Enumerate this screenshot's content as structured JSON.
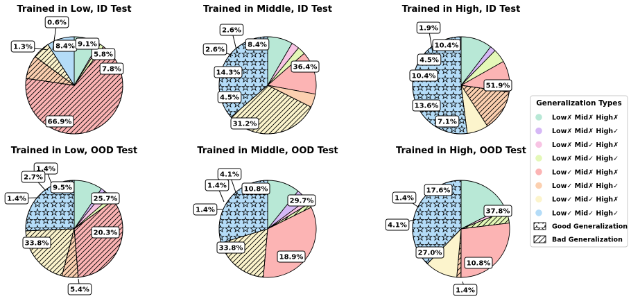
{
  "legend": {
    "title": "Generalization Types",
    "items": [
      {
        "label": "Low✗ Mid✗ High✗",
        "color": "#b8e8d6"
      },
      {
        "label": "Low✗ Mid✗ High✓",
        "color": "#d6b8f6"
      },
      {
        "label": "Low✗ Mid✓ High✗",
        "color": "#f8c4e4"
      },
      {
        "label": "Low✗ Mid✓ High✓",
        "color": "#e4f8b8"
      },
      {
        "label": "Low✓ Mid✗ High✗",
        "color": "#fcb4b4"
      },
      {
        "label": "Low✓ Mid✗ High✓",
        "color": "#fcd0b0"
      },
      {
        "label": "Low✓ Mid✓ High✗",
        "color": "#fcf4cc"
      },
      {
        "label": "Low✓ Mid✓ High✓",
        "color": "#b4dcf8"
      }
    ],
    "pattern_items": [
      {
        "label": "Good Generalization",
        "pattern": "stars"
      },
      {
        "label": "Bad Generalization",
        "pattern": "hatch"
      }
    ]
  },
  "chart_data": [
    {
      "type": "pie",
      "title": "Trained in Low, ID Test",
      "values": [
        8.4,
        0,
        0.6,
        1.3,
        66.9,
        7.8,
        5.8,
        9.1
      ],
      "labels": [
        "8.4%",
        "",
        "0.6%",
        "1.3%",
        "66.9%",
        "7.8%",
        "5.8%",
        "9.1%"
      ],
      "patterns": [
        "none",
        "none",
        "none",
        "none",
        "hatch",
        "hatch",
        "hatch",
        "none"
      ]
    },
    {
      "type": "pie",
      "title": "Trained in Middle, ID Test",
      "values": [
        8.4,
        0,
        2.6,
        2.6,
        14.3,
        4.5,
        31.2,
        36.4
      ],
      "labels": [
        "8.4%",
        "",
        "2.6%",
        "2.6%",
        "14.3%",
        "4.5%",
        "31.2%",
        "36.4%"
      ],
      "patterns": [
        "none",
        "none",
        "none",
        "none",
        "none",
        "none",
        "hatch",
        "stars"
      ]
    },
    {
      "type": "pie",
      "title": "Trained in High, ID Test",
      "values": [
        10.4,
        1.9,
        0,
        4.5,
        10.4,
        13.6,
        7.1,
        51.9
      ],
      "labels": [
        "10.4%",
        "1.9%",
        "",
        "4.5%",
        "10.4%",
        "13.6%",
        "7.1%",
        "51.9%"
      ],
      "patterns": [
        "none",
        "none",
        "none",
        "none",
        "none",
        "hatch",
        "none",
        "stars"
      ]
    },
    {
      "type": "pie",
      "title": "Trained in Low, OOD Test",
      "values": [
        9.5,
        1.4,
        2.7,
        1.4,
        33.8,
        5.4,
        20.3,
        25.7
      ],
      "labels": [
        "9.5%",
        "1.4%",
        "2.7%",
        "1.4%",
        "33.8%",
        "5.4%",
        "20.3%",
        "25.7%"
      ],
      "patterns": [
        "none",
        "none",
        "none",
        "none",
        "hatch",
        "hatch",
        "hatch",
        "stars"
      ]
    },
    {
      "type": "pie",
      "title": "Trained in Middle, OOD Test",
      "values": [
        10.8,
        4.1,
        1.4,
        1.4,
        33.8,
        0,
        18.9,
        29.7
      ],
      "labels": [
        "10.8%",
        "4.1%",
        "1.4%",
        "1.4%",
        "33.8%",
        "",
        "18.9%",
        "29.7%"
      ],
      "patterns": [
        "none",
        "none",
        "none",
        "hatch",
        "none",
        "none",
        "hatch",
        "stars"
      ]
    },
    {
      "type": "pie",
      "title": "Trained in High, OOD Test",
      "values": [
        17.6,
        0,
        1.4,
        4.1,
        27.0,
        1.4,
        10.8,
        37.8
      ],
      "labels": [
        "17.6%",
        "",
        "1.4%",
        "4.1%",
        "27.0%",
        "1.4%",
        "10.8%",
        "37.8%"
      ],
      "patterns": [
        "none",
        "none",
        "none",
        "hatch",
        "none",
        "hatch",
        "none",
        "stars"
      ]
    }
  ]
}
